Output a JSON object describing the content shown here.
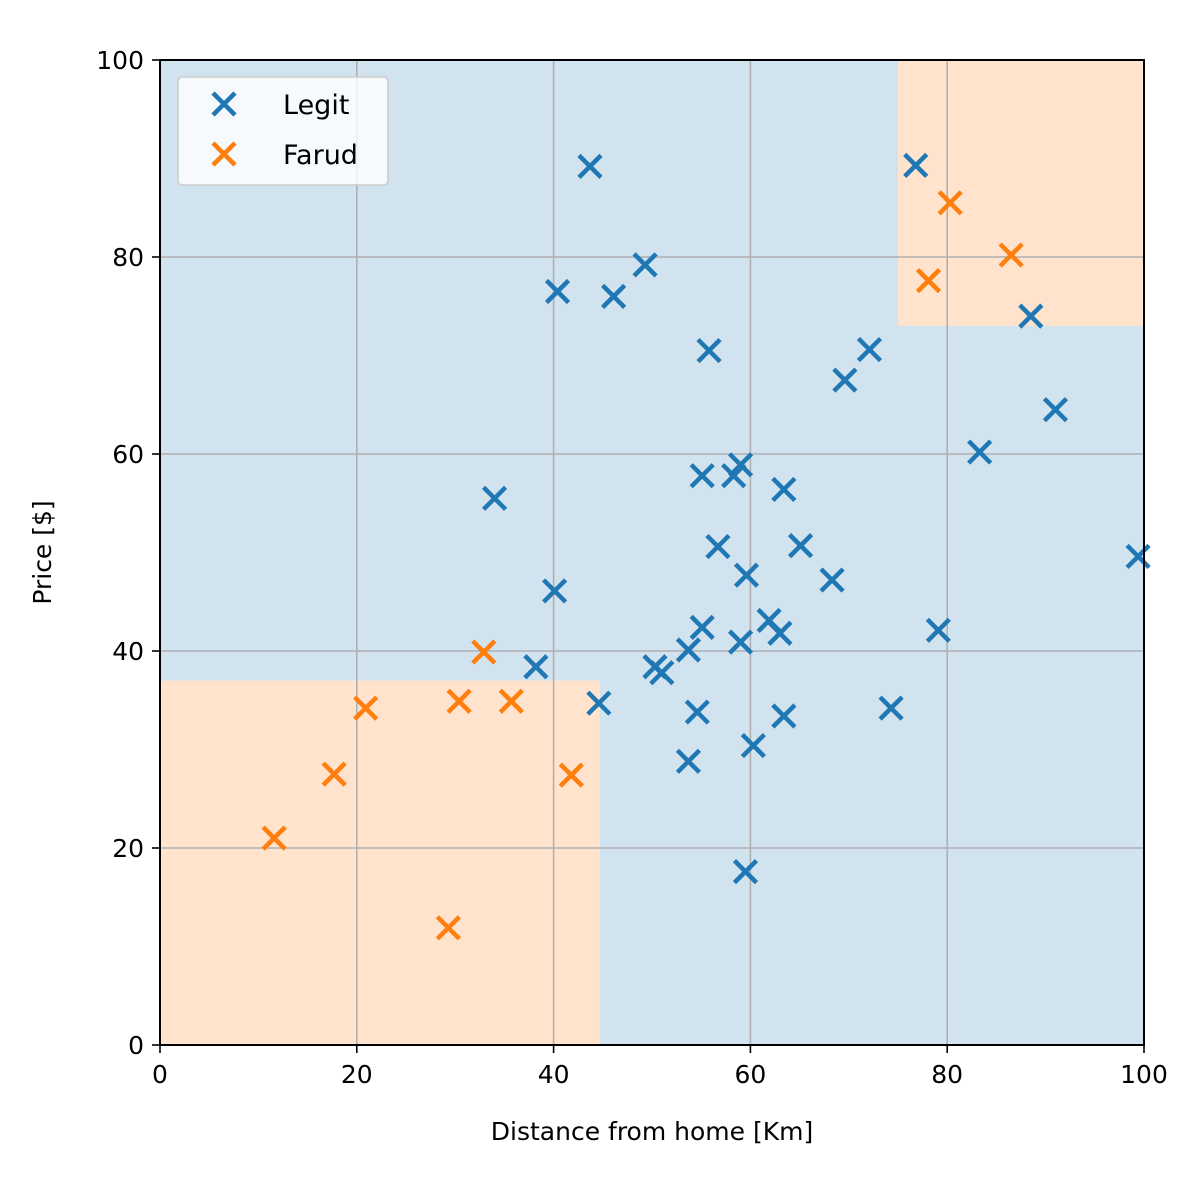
{
  "chart_data": {
    "type": "scatter",
    "xlabel": "Distance from home [Km]",
    "ylabel": "Price [$]",
    "xlim": [
      0,
      100
    ],
    "ylim": [
      0,
      100
    ],
    "xticks": [
      0,
      20,
      40,
      60,
      80,
      100
    ],
    "yticks": [
      0,
      20,
      40,
      60,
      80,
      100
    ],
    "xtick_labels": [
      "0",
      "20",
      "40",
      "60",
      "80",
      "100"
    ],
    "ytick_labels": [
      "0",
      "20",
      "40",
      "60",
      "80",
      "100"
    ],
    "grid": true,
    "legend": {
      "placement": "top-left"
    },
    "background_region_color": "#d2e3f0",
    "regions": [
      {
        "x": [
          0,
          44.7
        ],
        "y": [
          0,
          37
        ],
        "color": "#ffe3cc"
      },
      {
        "x": [
          75,
          100
        ],
        "y": [
          73,
          100
        ],
        "color": "#ffe3cc"
      }
    ],
    "series": [
      {
        "name": "Legit",
        "color": "#1f77b4",
        "marker": "x",
        "points": [
          [
            43.7,
            89.2
          ],
          [
            40.4,
            76.5
          ],
          [
            46.1,
            76.0
          ],
          [
            49.3,
            79.2
          ],
          [
            55.8,
            70.5
          ],
          [
            76.8,
            89.3
          ],
          [
            88.5,
            74.0
          ],
          [
            72.1,
            70.6
          ],
          [
            69.6,
            67.5
          ],
          [
            91.0,
            64.5
          ],
          [
            83.3,
            60.2
          ],
          [
            34.0,
            55.5
          ],
          [
            55.1,
            57.8
          ],
          [
            58.3,
            57.8
          ],
          [
            59.0,
            58.9
          ],
          [
            63.4,
            56.4
          ],
          [
            56.7,
            50.6
          ],
          [
            65.1,
            50.7
          ],
          [
            59.6,
            47.7
          ],
          [
            68.3,
            47.2
          ],
          [
            40.1,
            46.1
          ],
          [
            99.4,
            49.6
          ],
          [
            55.1,
            42.4
          ],
          [
            61.9,
            43.1
          ],
          [
            63.0,
            41.8
          ],
          [
            59.0,
            40.9
          ],
          [
            79.1,
            42.1
          ],
          [
            53.7,
            40.1
          ],
          [
            50.3,
            38.4
          ],
          [
            51.0,
            37.8
          ],
          [
            38.2,
            38.4
          ],
          [
            44.6,
            34.7
          ],
          [
            54.6,
            33.8
          ],
          [
            63.4,
            33.4
          ],
          [
            74.3,
            34.2
          ],
          [
            53.7,
            28.8
          ],
          [
            60.3,
            30.4
          ],
          [
            59.5,
            17.6
          ]
        ]
      },
      {
        "name": "Farud",
        "color": "#ff7f0e",
        "marker": "x",
        "points": [
          [
            80.3,
            85.5
          ],
          [
            86.5,
            80.2
          ],
          [
            78.1,
            77.6
          ],
          [
            32.9,
            39.9
          ],
          [
            30.4,
            34.9
          ],
          [
            35.7,
            34.9
          ],
          [
            20.9,
            34.2
          ],
          [
            17.7,
            27.5
          ],
          [
            41.8,
            27.4
          ],
          [
            11.6,
            21.0
          ],
          [
            29.3,
            11.9
          ]
        ]
      }
    ]
  }
}
